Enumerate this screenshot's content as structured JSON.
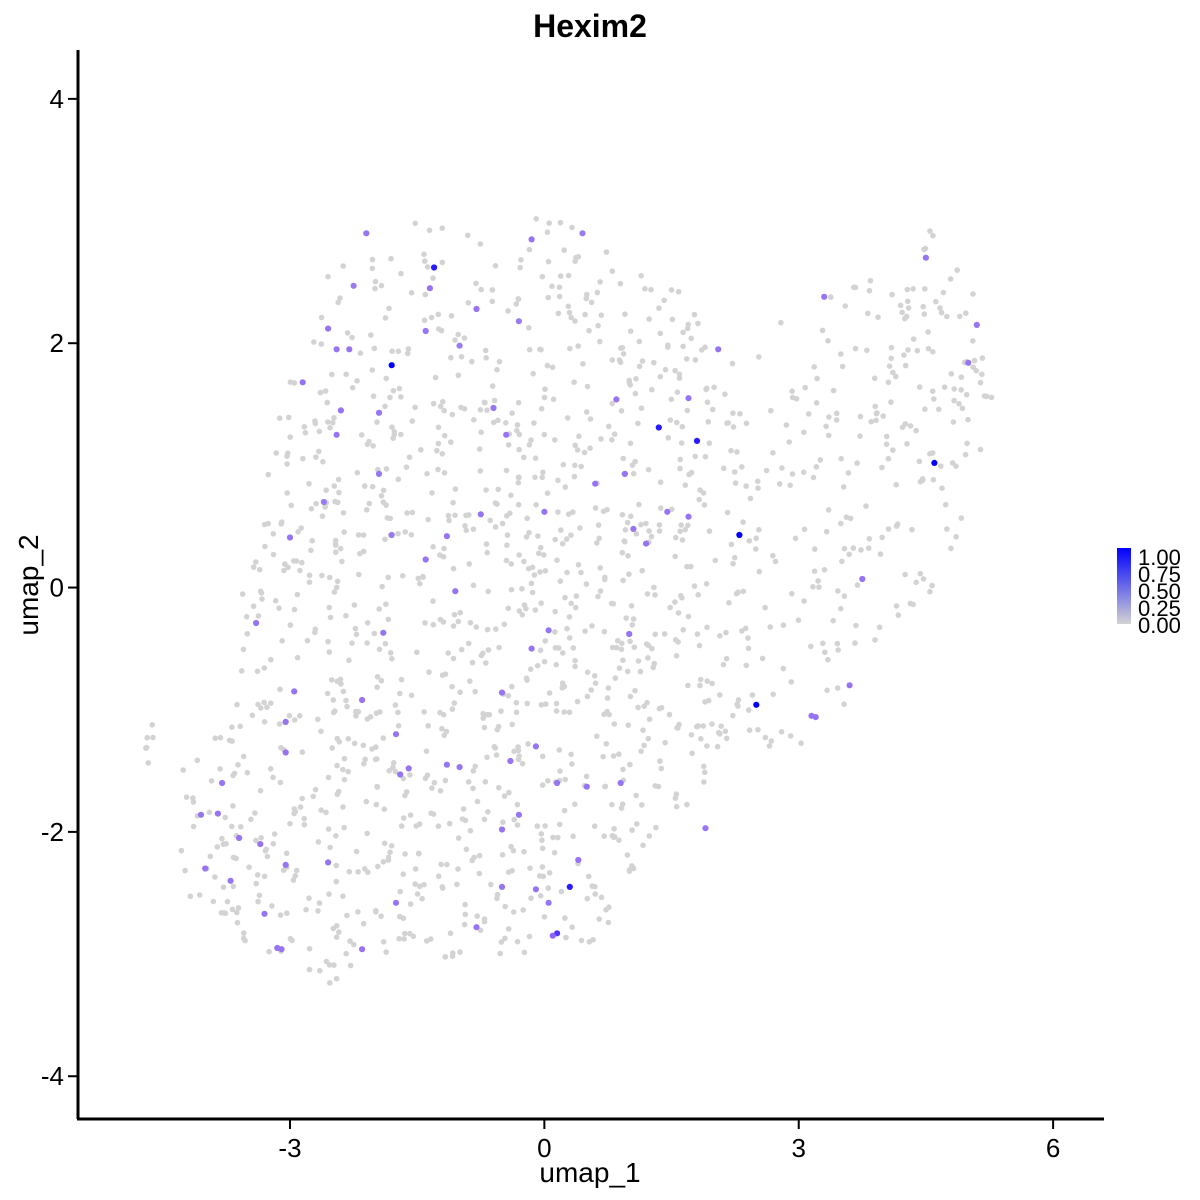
{
  "chart_data": {
    "type": "scatter",
    "title": "Hexim2",
    "xlabel": "umap_1",
    "ylabel": "umap_2",
    "xlim": [
      -5.5,
      6.6
    ],
    "ylim": [
      -4.35,
      4.4
    ],
    "x_ticks": [
      -3,
      0,
      3,
      6
    ],
    "x_tick_labels": [
      "-3",
      "0",
      "3",
      "6"
    ],
    "y_ticks": [
      -4,
      -2,
      0,
      2,
      4
    ],
    "y_tick_labels": [
      "-4",
      "-2",
      "0",
      "2",
      "4"
    ],
    "grid": false,
    "legend": {
      "placement": "right",
      "type": "colorbar",
      "min": 0,
      "max": 1,
      "labels": [
        "1.00",
        "0.75",
        "0.50",
        "0.25",
        "0.00"
      ],
      "low_color": "#d3d3d3",
      "high_color": "#0000ff"
    },
    "colors": {
      "low": "#d3d3d3",
      "high": "#0000ff"
    },
    "background_points": {
      "color": "#d3d3d3",
      "value": 0,
      "regions": [
        {
          "polygon": [
            [
              -2.2,
              2.9
            ],
            [
              -1.5,
              3.0
            ],
            [
              -0.5,
              3.05
            ],
            [
              0.2,
              3.1
            ],
            [
              0.5,
              2.9
            ],
            [
              1.0,
              2.7
            ],
            [
              1.6,
              2.55
            ],
            [
              1.8,
              2.2
            ],
            [
              1.0,
              2.0
            ],
            [
              0.2,
              1.6
            ],
            [
              -0.8,
              1.6
            ],
            [
              -2.0,
              1.8
            ],
            [
              -2.6,
              2.0
            ],
            [
              -3.0,
              1.8
            ],
            [
              -2.8,
              2.4
            ]
          ],
          "count": 130
        },
        {
          "polygon": [
            [
              2.5,
              2.2
            ],
            [
              3.3,
              2.45
            ],
            [
              4.0,
              2.55
            ],
            [
              4.5,
              3.05
            ],
            [
              5.0,
              2.6
            ],
            [
              5.35,
              2.3
            ],
            [
              5.3,
              1.6
            ],
            [
              5.2,
              0.8
            ],
            [
              4.9,
              0.3
            ],
            [
              4.4,
              -0.3
            ],
            [
              3.8,
              -0.7
            ],
            [
              3.4,
              -1.1
            ],
            [
              2.9,
              -1.4
            ],
            [
              2.5,
              -1.4
            ],
            [
              2.2,
              -1.2
            ],
            [
              2.0,
              -0.6
            ],
            [
              2.2,
              0.2
            ],
            [
              2.3,
              1.0
            ],
            [
              2.1,
              1.7
            ]
          ],
          "count": 270
        },
        {
          "polygon": [
            [
              -3.0,
              1.8
            ],
            [
              -2.0,
              1.8
            ],
            [
              -0.8,
              1.6
            ],
            [
              0.2,
              1.6
            ],
            [
              1.0,
              2.0
            ],
            [
              1.8,
              2.2
            ],
            [
              2.1,
              1.7
            ],
            [
              2.3,
              1.0
            ],
            [
              2.2,
              0.2
            ],
            [
              2.0,
              -0.6
            ],
            [
              2.2,
              -1.2
            ],
            [
              1.8,
              -1.7
            ],
            [
              1.2,
              -2.1
            ],
            [
              1.0,
              -2.5
            ],
            [
              0.6,
              -2.9
            ],
            [
              0.0,
              -3.0
            ],
            [
              -0.8,
              -3.0
            ],
            [
              -1.5,
              -3.05
            ],
            [
              -2.0,
              -3.1
            ],
            [
              -2.6,
              -3.3
            ],
            [
              -3.2,
              -3.05
            ],
            [
              -3.8,
              -2.85
            ],
            [
              -4.3,
              -2.5
            ],
            [
              -4.4,
              -2.0
            ],
            [
              -4.3,
              -1.5
            ],
            [
              -3.9,
              -1.2
            ],
            [
              -3.6,
              -0.8
            ],
            [
              -3.6,
              -0.1
            ],
            [
              -3.4,
              0.4
            ],
            [
              -3.3,
              0.8
            ],
            [
              -3.2,
              1.2
            ]
          ],
          "count": 1080
        },
        {
          "polygon": [
            [
              -4.8,
              -1.1
            ],
            [
              -4.6,
              -1.1
            ],
            [
              -4.6,
              -1.5
            ],
            [
              -4.8,
              -1.5
            ]
          ],
          "count": 6
        }
      ]
    },
    "expressed_points": [
      {
        "x": -2.1,
        "y": 2.9,
        "v": 0.6
      },
      {
        "x": -1.3,
        "y": 2.62,
        "v": 0.95
      },
      {
        "x": -1.35,
        "y": 2.45,
        "v": 0.6
      },
      {
        "x": -0.15,
        "y": 2.85,
        "v": 0.6
      },
      {
        "x": 0.45,
        "y": 2.9,
        "v": 0.55
      },
      {
        "x": -2.25,
        "y": 2.47,
        "v": 0.55
      },
      {
        "x": -2.55,
        "y": 2.12,
        "v": 0.6
      },
      {
        "x": -0.8,
        "y": 2.28,
        "v": 0.6
      },
      {
        "x": -1.4,
        "y": 2.1,
        "v": 0.6
      },
      {
        "x": -2.45,
        "y": 1.95,
        "v": 0.6
      },
      {
        "x": -2.3,
        "y": 1.95,
        "v": 0.6
      },
      {
        "x": -1.0,
        "y": 1.98,
        "v": 0.55
      },
      {
        "x": -0.3,
        "y": 2.18,
        "v": 0.55
      },
      {
        "x": -1.8,
        "y": 1.82,
        "v": 1.0
      },
      {
        "x": -2.85,
        "y": 1.68,
        "v": 0.6
      },
      {
        "x": -2.4,
        "y": 1.45,
        "v": 0.6
      },
      {
        "x": -1.95,
        "y": 1.43,
        "v": 0.6
      },
      {
        "x": -0.6,
        "y": 1.47,
        "v": 0.6
      },
      {
        "x": -2.45,
        "y": 1.25,
        "v": 0.6
      },
      {
        "x": -0.45,
        "y": 1.25,
        "v": 0.6
      },
      {
        "x": -1.95,
        "y": 0.93,
        "v": 0.6
      },
      {
        "x": -2.6,
        "y": 0.7,
        "v": 0.55
      },
      {
        "x": -0.75,
        "y": 0.6,
        "v": 0.6
      },
      {
        "x": -1.15,
        "y": 0.42,
        "v": 0.6
      },
      {
        "x": -1.8,
        "y": 0.43,
        "v": 0.55
      },
      {
        "x": -3.0,
        "y": 0.41,
        "v": 0.6
      },
      {
        "x": -1.4,
        "y": 0.23,
        "v": 0.6
      },
      {
        "x": -1.05,
        "y": -0.03,
        "v": 0.6
      },
      {
        "x": -3.4,
        "y": -0.29,
        "v": 0.6
      },
      {
        "x": -1.9,
        "y": -0.37,
        "v": 0.6
      },
      {
        "x": -2.95,
        "y": -0.85,
        "v": 0.6
      },
      {
        "x": -2.15,
        "y": -0.92,
        "v": 0.6
      },
      {
        "x": -3.05,
        "y": -1.1,
        "v": 0.6
      },
      {
        "x": -1.75,
        "y": -1.2,
        "v": 0.6
      },
      {
        "x": -3.05,
        "y": -1.35,
        "v": 0.6
      },
      {
        "x": -1.6,
        "y": -1.48,
        "v": 0.6
      },
      {
        "x": -1.15,
        "y": -1.45,
        "v": 0.6
      },
      {
        "x": -1.0,
        "y": -1.47,
        "v": 0.6
      },
      {
        "x": -1.7,
        "y": -1.53,
        "v": 0.6
      },
      {
        "x": -3.8,
        "y": -1.6,
        "v": 0.6
      },
      {
        "x": -4.05,
        "y": -1.86,
        "v": 0.6
      },
      {
        "x": -3.85,
        "y": -1.85,
        "v": 0.6
      },
      {
        "x": -3.6,
        "y": -2.05,
        "v": 0.6
      },
      {
        "x": -3.35,
        "y": -2.1,
        "v": 0.6
      },
      {
        "x": -4.0,
        "y": -2.3,
        "v": 0.6
      },
      {
        "x": -3.7,
        "y": -2.4,
        "v": 0.6
      },
      {
        "x": -3.05,
        "y": -2.27,
        "v": 0.6
      },
      {
        "x": -2.55,
        "y": -2.25,
        "v": 0.6
      },
      {
        "x": -3.3,
        "y": -2.67,
        "v": 0.6
      },
      {
        "x": -1.75,
        "y": -2.58,
        "v": 0.6
      },
      {
        "x": -3.1,
        "y": -2.96,
        "v": 0.6
      },
      {
        "x": -3.15,
        "y": -2.95,
        "v": 0.6
      },
      {
        "x": -2.15,
        "y": -2.96,
        "v": 0.6
      },
      {
        "x": -0.8,
        "y": -2.78,
        "v": 0.6
      },
      {
        "x": 0.6,
        "y": 0.85,
        "v": 0.6
      },
      {
        "x": 0.95,
        "y": 0.93,
        "v": 0.6
      },
      {
        "x": 0.85,
        "y": 1.54,
        "v": 0.6
      },
      {
        "x": 1.35,
        "y": 1.31,
        "v": 0.95
      },
      {
        "x": 1.7,
        "y": 1.55,
        "v": 0.6
      },
      {
        "x": 1.8,
        "y": 1.2,
        "v": 0.95
      },
      {
        "x": 2.05,
        "y": 1.95,
        "v": 0.6
      },
      {
        "x": 1.45,
        "y": 0.62,
        "v": 0.6
      },
      {
        "x": 1.7,
        "y": 0.58,
        "v": 0.6
      },
      {
        "x": 1.05,
        "y": 0.48,
        "v": 0.6
      },
      {
        "x": 1.2,
        "y": 0.36,
        "v": 0.6
      },
      {
        "x": 0.0,
        "y": 0.62,
        "v": 0.6
      },
      {
        "x": 2.3,
        "y": 0.43,
        "v": 1.0
      },
      {
        "x": 3.3,
        "y": 2.38,
        "v": 0.6
      },
      {
        "x": 4.5,
        "y": 2.7,
        "v": 0.6
      },
      {
        "x": 5.1,
        "y": 2.15,
        "v": 0.6
      },
      {
        "x": 5.0,
        "y": 1.84,
        "v": 0.6
      },
      {
        "x": 4.6,
        "y": 1.02,
        "v": 1.0
      },
      {
        "x": 3.75,
        "y": 0.07,
        "v": 0.6
      },
      {
        "x": 3.6,
        "y": -0.8,
        "v": 0.6
      },
      {
        "x": 3.2,
        "y": -1.06,
        "v": 0.6
      },
      {
        "x": 3.15,
        "y": -1.05,
        "v": 0.6
      },
      {
        "x": 2.5,
        "y": -0.96,
        "v": 1.0
      },
      {
        "x": 1.0,
        "y": -0.38,
        "v": 0.6
      },
      {
        "x": 0.05,
        "y": -0.35,
        "v": 0.6
      },
      {
        "x": -0.15,
        "y": -0.5,
        "v": 0.6
      },
      {
        "x": -0.5,
        "y": -0.86,
        "v": 0.6
      },
      {
        "x": -0.1,
        "y": -1.3,
        "v": 0.6
      },
      {
        "x": -0.4,
        "y": -1.42,
        "v": 0.6
      },
      {
        "x": 0.15,
        "y": -1.6,
        "v": 0.6
      },
      {
        "x": 0.5,
        "y": -1.63,
        "v": 0.6
      },
      {
        "x": 0.9,
        "y": -1.6,
        "v": 0.6
      },
      {
        "x": -0.3,
        "y": -1.86,
        "v": 0.6
      },
      {
        "x": -0.5,
        "y": -1.98,
        "v": 0.6
      },
      {
        "x": 1.9,
        "y": -1.97,
        "v": 0.6
      },
      {
        "x": 0.4,
        "y": -2.23,
        "v": 0.6
      },
      {
        "x": 0.3,
        "y": -2.45,
        "v": 0.95
      },
      {
        "x": -0.5,
        "y": -2.45,
        "v": 0.6
      },
      {
        "x": -0.1,
        "y": -2.47,
        "v": 0.6
      },
      {
        "x": 0.05,
        "y": -2.58,
        "v": 0.6
      },
      {
        "x": 0.15,
        "y": -2.83,
        "v": 0.9
      },
      {
        "x": 0.1,
        "y": -2.85,
        "v": 0.7
      }
    ]
  }
}
